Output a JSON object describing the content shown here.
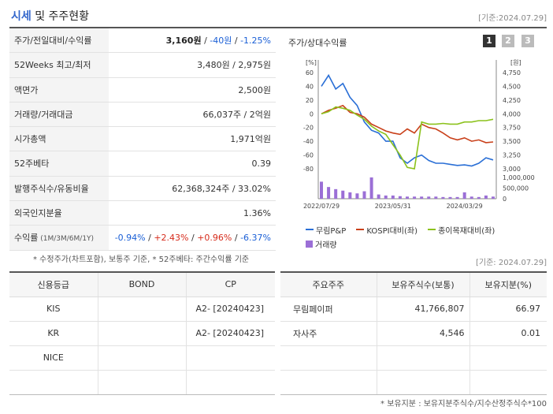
{
  "header": {
    "title_part1": "시세",
    "title_part2": " 및 주주현황",
    "date": "[기준:2024.07.29]"
  },
  "info_rows": [
    {
      "label": "주가/전일대비/수익률",
      "price": "3,160원",
      "sep1": " / ",
      "change": "-40원",
      "sep2": " / ",
      "rate": "-1.25%"
    },
    {
      "label": "52Weeks 최고/최저",
      "value": "3,480원 / 2,975원"
    },
    {
      "label": "액면가",
      "value": "2,500원"
    },
    {
      "label": "거래량/거래대금",
      "value": "66,037주 / 2억원"
    },
    {
      "label": "시가총액",
      "value": "1,971억원"
    },
    {
      "label": "52주베타",
      "value": "0.39"
    },
    {
      "label": "발행주식수/유동비율",
      "value": "62,368,324주 / 33.02%"
    },
    {
      "label": "외국인지분율",
      "value": "1.36%"
    },
    {
      "label": "수익률",
      "label_small": " (1M/3M/6M/1Y)",
      "r1": "-0.94%",
      "r2": "+2.43%",
      "r3": "+0.96%",
      "r4": "-6.37%",
      "sep": "/ "
    }
  ],
  "notes": {
    "left": "* 수정주가(차트포함), 보통주 기준, * 52주베타: 주간수익률 기준",
    "right_date": "[기준: 2024.07.29]",
    "bottom": "* 보유지분 : 보유지분주식수/지수산정주식수*100"
  },
  "chart": {
    "title": "주가/상대수익률",
    "pages": [
      "1",
      "2",
      "3"
    ],
    "left_unit": "[%]",
    "right_unit": "[원]",
    "x_ticks": [
      "2022/07/29",
      "2023/05/31",
      "2024/03/29"
    ],
    "legend": [
      {
        "name": "무림P&P",
        "color": "#2a6fd6",
        "kind": "line"
      },
      {
        "name": "KOSPI대비(좌)",
        "color": "#c9401a",
        "kind": "line"
      },
      {
        "name": "종이목재대비(좌)",
        "color": "#8cc21d",
        "kind": "line"
      },
      {
        "name": "거래량",
        "color": "#9b6fd6",
        "kind": "bar"
      }
    ]
  },
  "chart_data": {
    "type": "line",
    "x": [
      "2022-07",
      "2022-08",
      "2022-09",
      "2022-10",
      "2022-11",
      "2022-12",
      "2023-01",
      "2023-02",
      "2023-03",
      "2023-04",
      "2023-05",
      "2023-06",
      "2023-07",
      "2023-08",
      "2023-09",
      "2023-10",
      "2023-11",
      "2023-12",
      "2024-01",
      "2024-02",
      "2024-03",
      "2024-04",
      "2024-05",
      "2024-06",
      "2024-07"
    ],
    "y_left_ticks": [
      60,
      40,
      20,
      0,
      -20,
      -40,
      -60,
      -80
    ],
    "y_left_range": [
      -80,
      60
    ],
    "y_right_ticks": [
      4750,
      4500,
      4250,
      4000,
      3750,
      3500,
      3250,
      3000
    ],
    "y_right_range": [
      3000,
      4750
    ],
    "volume_ticks": [
      "1,000,000",
      "500,000",
      "0"
    ],
    "series": [
      {
        "name": "무림P&P",
        "axis": "right",
        "values": [
          4500,
          4700,
          4450,
          4550,
          4300,
          4150,
          3850,
          3700,
          3650,
          3500,
          3500,
          3200,
          3100,
          3200,
          3250,
          3150,
          3100,
          3100,
          3080,
          3060,
          3070,
          3050,
          3100,
          3200,
          3160
        ]
      },
      {
        "name": "KOSPI대비(좌)",
        "axis": "left",
        "values": [
          0,
          5,
          8,
          12,
          2,
          0,
          -5,
          -15,
          -20,
          -25,
          -28,
          -30,
          -22,
          -28,
          -15,
          -20,
          -22,
          -28,
          -35,
          -38,
          -35,
          -40,
          -38,
          -42,
          -41
        ]
      },
      {
        "name": "종이목재대비(좌)",
        "axis": "left",
        "values": [
          0,
          3,
          10,
          8,
          5,
          -2,
          -8,
          -18,
          -25,
          -30,
          -45,
          -60,
          -78,
          -80,
          -12,
          -15,
          -15,
          -14,
          -15,
          -15,
          -12,
          -12,
          -10,
          -10,
          -8
        ]
      }
    ],
    "volume": [
      800000,
      550000,
      450000,
      380000,
      300000,
      250000,
      350000,
      1000000,
      200000,
      150000,
      150000,
      120000,
      100000,
      100000,
      100000,
      100000,
      100000,
      80000,
      80000,
      80000,
      300000,
      100000,
      80000,
      150000,
      100000
    ]
  },
  "credit_table": {
    "headers": [
      "신용등급",
      "BOND",
      "CP"
    ],
    "rows": [
      [
        "KIS",
        "",
        "A2-   [20240423]"
      ],
      [
        "KR",
        "",
        "A2-   [20240423]"
      ],
      [
        "NICE",
        "",
        ""
      ],
      [
        "",
        "",
        ""
      ]
    ]
  },
  "holder_table": {
    "headers": [
      "주요주주",
      "보유주식수(보통)",
      "보유지분(%)"
    ],
    "rows": [
      [
        "무림페이퍼",
        "41,766,807",
        "66.97"
      ],
      [
        "자사주",
        "4,546",
        "0.01"
      ],
      [
        "",
        "",
        ""
      ],
      [
        "",
        "",
        ""
      ]
    ]
  }
}
